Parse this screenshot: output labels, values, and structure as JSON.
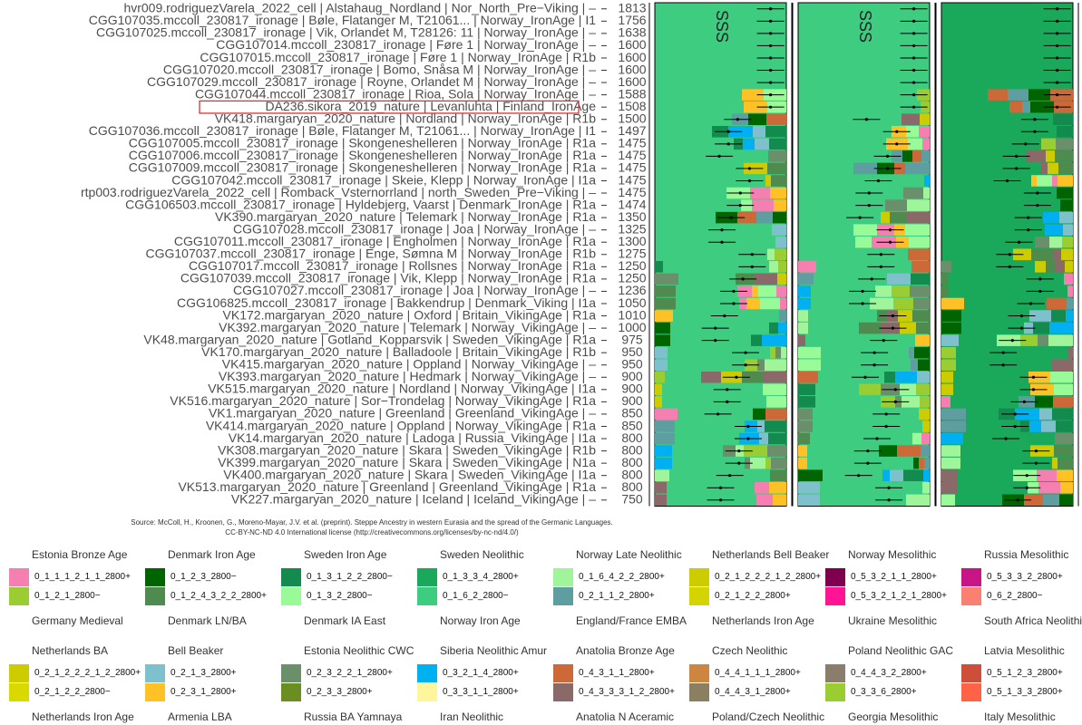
{
  "chart_data": {
    "type": "table",
    "title": "",
    "source_line1": "Source: McColl, H., Kroonen, G., Moreno-Mayar, J.V. et al. (preprint). Steppe Ancestry in western Eurasia and the spread of the Germanic Languages.",
    "source_line2": "CC-BY-NC-ND 4.0 International license (http://creativecommons.org/licenses/by-nc-nd/4.0/)",
    "panel_labels": [
      "SSS",
      "SSS",
      ""
    ],
    "highlighted_sample": "DA236.sikora_2019_nature | Levanluhta | Finland_IronAge",
    "samples": [
      {
        "label": "hvr009.rodriguezVarela_2022_cell | Alstahaug_Nordland | Nor_North_Pre−Viking | –",
        "year": "1813"
      },
      {
        "label": "CGG107035.mccoll_230817_ironage | Bøle, Flatanger M, T21061... | Norway_IronAge | I1",
        "year": "1756"
      },
      {
        "label": "CGG107025.mccoll_230817_ironage | Vik, Orlandet M, T28126: 11 | Norway_IronAge | –",
        "year": "1638"
      },
      {
        "label": "CGG107014.mccoll_230817_ironage | Føre 1 | Norway_IronAge | –",
        "year": "1600"
      },
      {
        "label": "CGG107015.mccoll_230817_ironage | Føre 1 | Norway_IronAge | R1b",
        "year": "1600"
      },
      {
        "label": "CGG107020.mccoll_230817_ironage | Bomo, Snåsa M | Norway_IronAge | –",
        "year": "1600"
      },
      {
        "label": "CGG107029.mccoll_230817_ironage | Royne, Orlandet M | Norway_IronAge | –",
        "year": "1600"
      },
      {
        "label": "CGG107044.mccoll_230817_ironage | Rioa, Sola | Norway_IronAge | –",
        "year": "1588"
      },
      {
        "label": "DA236.sikora_2019_nature | Levanluhta | Finland_IronAge",
        "year": "1508"
      },
      {
        "label": "VK418.margaryan_2020_nature | Nordland | Norway_IronAge | R1b",
        "year": "1500"
      },
      {
        "label": "CGG107036.mccoll_230817_ironage | Bøle, Flatanger M, T21061... | Norway_IronAge | I1",
        "year": "1497"
      },
      {
        "label": "CGG107005.mccoll_230817_ironage | Skongeneshelleren | Norway_IronAge | R1a",
        "year": "1475"
      },
      {
        "label": "CGG107006.mccoll_230817_ironage | Skongeneshelleren | Norway_IronAge | R1a",
        "year": "1475"
      },
      {
        "label": "CGG107009.mccoll_230817_ironage | Skongeneshelleren | Norway_IronAge | R1a",
        "year": "1475"
      },
      {
        "label": "CGG107042.mccoll_230817_ironage | Skeie, Klepp | Norway_IronAge | I1a",
        "year": "1475"
      },
      {
        "label": "rtp003.rodriguezVarela_2022_cell | Romback_Vsternorrland | north_Sweden_Pre−Viking | –",
        "year": "1475"
      },
      {
        "label": "CGG106503.mccoll_230817_ironage | Hyldebjerg, Vaarst | Denmark_IronAge | R1a",
        "year": "1474"
      },
      {
        "label": "VK390.margaryan_2020_nature | Telemark | Norway_IronAge | R1a",
        "year": "1350"
      },
      {
        "label": "CGG107028.mccoll_230817_ironage | Joa | Norway_IronAge | –",
        "year": "1325"
      },
      {
        "label": "CGG107011.mccoll_230817_ironage | Engholmen | Norway_IronAge | R1a",
        "year": "1300"
      },
      {
        "label": "CGG107037.mccoll_230817_ironage | Enge, Sømna M | Norway_IronAge | R1b",
        "year": "1275"
      },
      {
        "label": "CGG107017.mccoll_230817_ironage | Rollsnes | Norway_IronAge | R1a",
        "year": "1250"
      },
      {
        "label": "CGG107039.mccoll_230817_ironage | Vik, Klepp | Norway_IronAge | R1a",
        "year": "1250"
      },
      {
        "label": "CGG107027.mccoll_230817_ironage | Joa | Norway_IronAge | –",
        "year": "1236"
      },
      {
        "label": "CGG106825.mccoll_230817_ironage | Bakkendrup | Denmark_Viking | I1a",
        "year": "1050"
      },
      {
        "label": "VK172.margaryan_2020_nature | Oxford | Britain_VikingAge | R1a",
        "year": "1010"
      },
      {
        "label": "VK392.margaryan_2020_nature | Telemark | Norway_VikingAge | –",
        "year": "1000"
      },
      {
        "label": "VK48.margaryan_2020_nature | Gotland_Kopparsvik | Sweden_VikingAge | R1a",
        "year": "975"
      },
      {
        "label": "VK170.margaryan_2020_nature | Balladoole | Britain_VikingAge | R1b",
        "year": "950"
      },
      {
        "label": "VK415.margaryan_2020_nature | Oppland | Norway_VikingAge | –",
        "year": "950"
      },
      {
        "label": "VK393.margaryan_2020_nature | Hedmark | Norway_VikingAge | –",
        "year": "900"
      },
      {
        "label": "VK515.margaryan_2020_nature | Nordland | Norway_VikingAge | I1a",
        "year": "900"
      },
      {
        "label": "VK516.margaryan_2020_nature | Sor−Trondelag | Norway_VikingAge | R1a",
        "year": "900"
      },
      {
        "label": "VK1.margaryan_2020_nature | Greenland | Greenland_VikingAge | –",
        "year": "850"
      },
      {
        "label": "VK414.margaryan_2020_nature | Oppland | Norway_VikingAge | R1a",
        "year": "850"
      },
      {
        "label": "VK14.margaryan_2020_nature | Ladoga | Russia_VikingAge | I1a",
        "year": "800"
      },
      {
        "label": "VK308.margaryan_2020_nature | Skara | Sweden_VikingAge | R1b",
        "year": "800"
      },
      {
        "label": "VK399.margaryan_2020_nature | Skara | Sweden_VikingAge | N1a",
        "year": "800"
      },
      {
        "label": "VK400.margaryan_2020_nature | Skara | Sweden_VikingAge | I1a",
        "year": "800"
      },
      {
        "label": "VK513.margaryan_2020_nature | Greenland | Greenland_VikingAge | R1a",
        "year": "800"
      },
      {
        "label": "VK227.margaryan_2020_nature | Iceland | Iceland_VikingAge | –",
        "year": "750"
      }
    ],
    "legend_groups": [
      {
        "title_above": "Estonia Bronze Age",
        "title_below": "Germany Medieval",
        "items": [
          {
            "label": "0_1_1_1_2_1_1_2800+",
            "color": "#f57fb0"
          },
          {
            "label": "0_1_2_1_2800−",
            "color": "#9acd32"
          }
        ]
      },
      {
        "title_above": "Denmark Iron Age",
        "title_below": "Denmark LN/BA",
        "items": [
          {
            "label": "0_1_2_3_2800−",
            "color": "#006400"
          },
          {
            "label": "0_1_2_4_3_2_2_2800+",
            "color": "#4f8a4f"
          }
        ]
      },
      {
        "title_above": "Sweden Iron Age",
        "title_below": "Denmark IA East",
        "items": [
          {
            "label": "0_1_3_1_2_2_2800−",
            "color": "#138a4e"
          },
          {
            "label": "0_1_3_2_2800−",
            "color": "#98fb98"
          }
        ]
      },
      {
        "title_above": "Sweden Neolithic",
        "title_below": "Norway Iron Age",
        "items": [
          {
            "label": "0_1_3_3_4_2800+",
            "color": "#1aa85a"
          },
          {
            "label": "0_1_6_2_2800−",
            "color": "#3dcc80"
          }
        ]
      },
      {
        "title_above": "Norway Late Neolithic",
        "title_below": "England/France EMBA",
        "items": [
          {
            "label": "0_1_6_4_2_2_2800+",
            "color": "#a0f59a"
          },
          {
            "label": "0_2_1_1_2_2800+",
            "color": "#5f9ea0"
          }
        ]
      },
      {
        "title_above": "Netherlands Bell Beaker",
        "title_below": "Netherlands Iron Age",
        "items": [
          {
            "label": "0_2_1_2_2_2_1_2_2800+",
            "color": "#cccc00"
          },
          {
            "label": "0_2_1_2_2_2800+",
            "color": "#d4d400"
          }
        ]
      },
      {
        "title_above": "Norway Mesolithic",
        "title_below": "Ukraine Mesolithic",
        "items": [
          {
            "label": "0_5_3_2_1_1_2800+",
            "color": "#800050"
          },
          {
            "label": "0_5_3_2_1_2_1_2800+",
            "color": "#ff1493"
          }
        ]
      },
      {
        "title_above": "Russia Mesolithic",
        "title_below": "South Africa Neolithic",
        "items": [
          {
            "label": "0_5_3_3_2_2800+",
            "color": "#c71585"
          },
          {
            "label": "0_6_2_2800−",
            "color": "#fa8072"
          }
        ]
      },
      {
        "title_above": "Netherlands BA",
        "title_below": "Netherlands Iron Age",
        "items": [
          {
            "label": "0_2_1_2_2_2_1_2_2800+",
            "color": "#cccc00"
          },
          {
            "label": "0_2_1_2_2_2800−",
            "color": "#d9d900"
          }
        ]
      },
      {
        "title_above": "Bell Beaker",
        "title_below": "Armenia LBA",
        "items": [
          {
            "label": "0_2_1_3_2800+",
            "color": "#7ec0cc"
          },
          {
            "label": "0_2_3_1_2800+",
            "color": "#ffc125"
          }
        ]
      },
      {
        "title_above": "Estonia Neolithic CWC",
        "title_below": "Russia BA Yamnaya",
        "items": [
          {
            "label": "0_2_3_2_2_1_2800+",
            "color": "#6b8e6b"
          },
          {
            "label": "0_2_3_3_2800+",
            "color": "#6b8e23"
          }
        ]
      },
      {
        "title_above": "Siberia Neolithic Amur",
        "title_below": "Iran Neolithic",
        "items": [
          {
            "label": "0_3_2_1_4_2800+",
            "color": "#00b0f0"
          },
          {
            "label": "0_3_3_1_1_2800+",
            "color": "#fff59a"
          }
        ]
      },
      {
        "title_above": "Anatolia Bronze Age",
        "title_below": "Anatolia N Aceramic",
        "items": [
          {
            "label": "0_4_3_1_1_2800+",
            "color": "#cd6839"
          },
          {
            "label": "0_4_3_3_3_1_2_2800+",
            "color": "#8b6969"
          }
        ]
      },
      {
        "title_above": "Czech Neolithic",
        "title_below": "Poland/Czech Neolithic",
        "items": [
          {
            "label": "0_4_4_1_1_1_2800+",
            "color": "#cd853f"
          },
          {
            "label": "0_4_4_3_1_2800+",
            "color": "#8b7f62"
          }
        ]
      },
      {
        "title_above": "Poland Neolithic GAC",
        "title_below": "Georgia Mesolithic",
        "items": [
          {
            "label": "0_4_4_3_2_2800+",
            "color": "#8b7d6b"
          },
          {
            "label": "0_3_3_6_2800+",
            "color": "#9acd32"
          }
        ]
      },
      {
        "title_above": "Latvia Mesolithic",
        "title_below": "Italy Mesolithic",
        "items": [
          {
            "label": "0_5_1_2_3_2800+",
            "color": "#cd4f39"
          },
          {
            "label": "0_5_1_3_3_2800+",
            "color": "#ff6347"
          }
        ]
      }
    ]
  }
}
